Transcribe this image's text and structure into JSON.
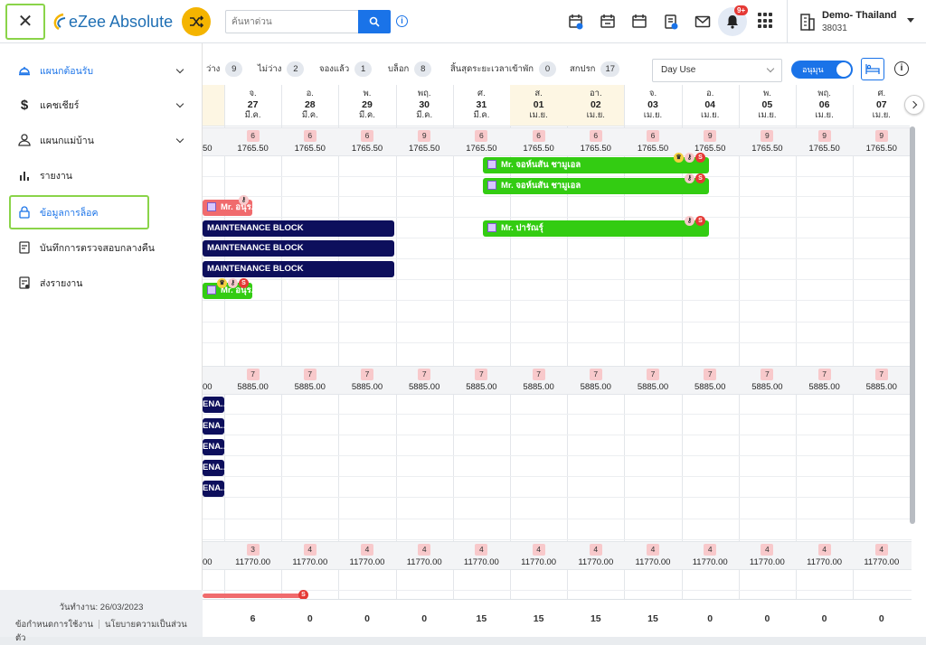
{
  "header": {
    "logo_text": "eZee Absolute",
    "search_placeholder": "ค้นหาด่วน",
    "notification_badge": "9+",
    "property_name": "Demo- Thailand",
    "property_id": "38031"
  },
  "sidebar": {
    "items": [
      {
        "label": "แผนกต้อนรับ",
        "icon": "reception-bell-icon"
      },
      {
        "label": "แคชเชียร์",
        "icon": "dollar-icon"
      },
      {
        "label": "แผนกแม่บ้าน",
        "icon": "housekeeping-icon"
      },
      {
        "label": "รายงาน",
        "icon": "bar-chart-icon"
      },
      {
        "label": "ข้อมูลการล็อค",
        "icon": "lock-icon"
      },
      {
        "label": "บันทึกการตรวจสอบกลางคืน",
        "icon": "audit-doc-icon"
      },
      {
        "label": "ส่งรายงาน",
        "icon": "send-report-icon"
      }
    ],
    "work_date": "วันทำงาน: 26/03/2023",
    "footer_links": [
      "ข้อกำหนดการใช้งาน",
      "นโยบายความเป็นส่วนตัว"
    ]
  },
  "stats": [
    {
      "label": "ว่าง",
      "count": "9"
    },
    {
      "label": "ไม่ว่าง",
      "count": "2"
    },
    {
      "label": "จองแล้ว",
      "count": "1"
    },
    {
      "label": "บล็อก",
      "count": "8"
    },
    {
      "label": "สิ้นสุดระยะเวลาเข้าพัก",
      "count": "0"
    },
    {
      "label": "สกปรก",
      "count": "17"
    }
  ],
  "view_select": "Day Use",
  "toggle_label": "อนุมุน",
  "dates": [
    {
      "dow": "จ.",
      "day": "27",
      "month": "มี.ค.",
      "weekend": false
    },
    {
      "dow": "อ.",
      "day": "28",
      "month": "มี.ค.",
      "weekend": false
    },
    {
      "dow": "พ.",
      "day": "29",
      "month": "มี.ค.",
      "weekend": false
    },
    {
      "dow": "พฤ.",
      "day": "30",
      "month": "มี.ค.",
      "weekend": false
    },
    {
      "dow": "ศ.",
      "day": "31",
      "month": "มี.ค.",
      "weekend": false
    },
    {
      "dow": "ส.",
      "day": "01",
      "month": "เม.ย.",
      "weekend": true
    },
    {
      "dow": "อา.",
      "day": "02",
      "month": "เม.ย.",
      "weekend": true
    },
    {
      "dow": "จ.",
      "day": "03",
      "month": "เม.ย.",
      "weekend": false
    },
    {
      "dow": "อ.",
      "day": "04",
      "month": "เม.ย.",
      "weekend": false
    },
    {
      "dow": "พ.",
      "day": "05",
      "month": "เม.ย.",
      "weekend": false
    },
    {
      "dow": "พฤ.",
      "day": "06",
      "month": "เม.ย.",
      "weekend": false
    },
    {
      "dow": "ศ.",
      "day": "07",
      "month": "เม.ย.",
      "weekend": false
    }
  ],
  "sections": [
    {
      "partial_rate": "50",
      "partial_count": "6",
      "avail": [
        "6",
        "6",
        "6",
        "9",
        "6",
        "6",
        "6",
        "6",
        "9",
        "9",
        "9",
        "9"
      ],
      "rate": "1765.50"
    },
    {
      "partial_rate": "00",
      "partial_count": "7",
      "avail": [
        "7",
        "7",
        "7",
        "7",
        "7",
        "7",
        "7",
        "7",
        "7",
        "7",
        "7",
        "7"
      ],
      "rate": "5885.00"
    },
    {
      "partial_rate": "00",
      "partial_count": "3",
      "avail": [
        "3",
        "4",
        "4",
        "4",
        "4",
        "4",
        "4",
        "4",
        "4",
        "4",
        "4",
        "4"
      ],
      "rate": "11770.00"
    }
  ],
  "reservations": [
    {
      "label": "Mr. จอห์นสัน ชามูเอล",
      "badges": [
        "crown",
        "k",
        "s"
      ]
    },
    {
      "label": "Mr. จอห์นสัน ชามูเอล",
      "badges": [
        "k",
        "s"
      ]
    },
    {
      "label": "Mr. อนุร...",
      "badges": [
        "k"
      ]
    },
    {
      "label": "MAINTENANCE BLOCK",
      "badges": []
    },
    {
      "label": "Mr. ปารัณรุ์",
      "badges": [
        "k",
        "s"
      ]
    },
    {
      "label": "MAINTENANCE BLOCK",
      "badges": []
    },
    {
      "label": "MAINTENANCE BLOCK",
      "badges": []
    },
    {
      "label": "Mr. อนุร...",
      "badges": [
        "crown",
        "k",
        "s"
      ]
    },
    {
      "label": "ENA...",
      "badges": []
    },
    {
      "label": "ENA...",
      "badges": []
    },
    {
      "label": "ENA...",
      "badges": []
    },
    {
      "label": "ENA...",
      "badges": []
    },
    {
      "label": "ENA...",
      "badges": []
    }
  ],
  "totals": [
    "6",
    "0",
    "0",
    "0",
    "15",
    "15",
    "15",
    "15",
    "0",
    "0",
    "0",
    "0"
  ]
}
